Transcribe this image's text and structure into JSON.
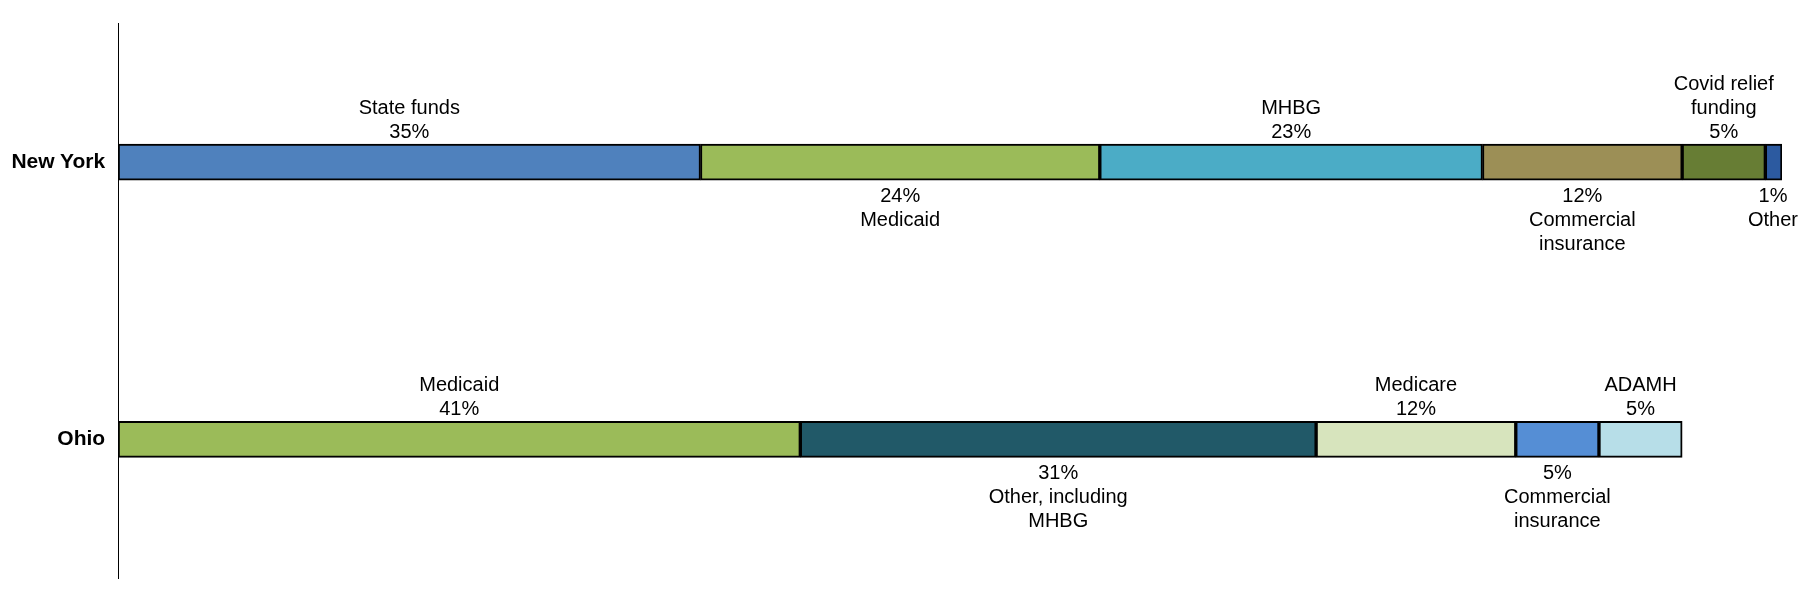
{
  "chart_data": {
    "type": "bar",
    "orientation": "horizontal",
    "stacked": true,
    "categories": [
      "New York",
      "Ohio"
    ],
    "xlim": [
      0,
      100
    ],
    "tick_labels": "y",
    "legend": false,
    "series": [
      {
        "name": "State funds",
        "color": "#4f81bd",
        "values": [
          35,
          null
        ],
        "value_labels": [
          "35%",
          null
        ]
      },
      {
        "name": "Medicaid",
        "color": "#9bbb59",
        "values": [
          24,
          null
        ],
        "value_labels": [
          "24%",
          null
        ]
      },
      {
        "name": "MHBG",
        "color": "#4bacc6",
        "values": [
          23,
          null
        ],
        "value_labels": [
          "23%",
          null
        ]
      },
      {
        "name": "Commercial insurance",
        "color": "#9c8f56",
        "values": [
          12,
          null
        ],
        "value_labels": [
          "12%",
          null
        ]
      },
      {
        "name": "Covid relief funding",
        "color": "#677d34",
        "values": [
          5,
          null
        ],
        "value_labels": [
          "5%",
          null
        ]
      },
      {
        "name": "Other",
        "color": "#2c5aa0",
        "values": [
          1,
          null
        ],
        "value_labels": [
          "1%",
          null
        ]
      },
      {
        "name": "Medicaid",
        "color": "#9bbb59",
        "values": [
          null,
          41
        ],
        "value_labels": [
          null,
          "41%"
        ]
      },
      {
        "name": "Other, including MHBG",
        "color": "#215968",
        "values": [
          null,
          31
        ],
        "value_labels": [
          null,
          "31%"
        ]
      },
      {
        "name": "Medicare",
        "color": "#d7e4bd",
        "values": [
          null,
          12
        ],
        "value_labels": [
          null,
          "12%"
        ]
      },
      {
        "name": "Commercial insurance",
        "color": "#558ed5",
        "values": [
          null,
          5
        ],
        "value_labels": [
          null,
          "5%"
        ]
      },
      {
        "name": "ADAMH",
        "color": "#b7dee8",
        "values": [
          null,
          5
        ],
        "value_labels": [
          null,
          "5%"
        ]
      }
    ]
  }
}
